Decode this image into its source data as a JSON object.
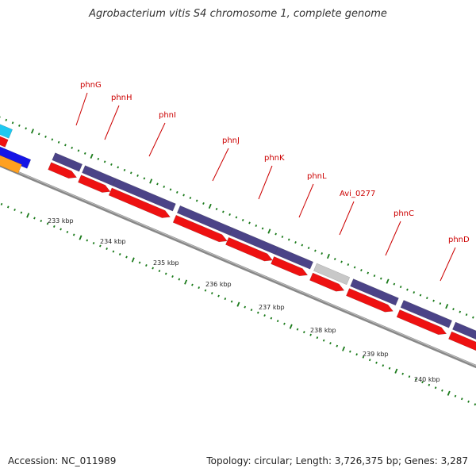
{
  "title": "Agrobacterium vitis S4 chromosome 1, complete genome",
  "footer": {
    "accession": "Accession: NC_011989",
    "topology": "Topology: circular; Length: 3,726,375 bp; Genes: 3,287"
  },
  "colors": {
    "cds": "#4b4387",
    "gene_arrow": "#ee1111",
    "pseudo": "#c8c8c8",
    "backbone": "#888888",
    "tick": "#1a7a1a",
    "label": "#cc0000",
    "left_cyan": "#1ec8f0",
    "left_blue": "#1515e6",
    "left_orange": "#ffa020"
  },
  "ruler": [
    {
      "text": "233 kbp"
    },
    {
      "text": "234 kbp"
    },
    {
      "text": "235 kbp"
    },
    {
      "text": "236 kbp"
    },
    {
      "text": "237 kbp"
    },
    {
      "text": "238 kbp"
    },
    {
      "text": "239 kbp"
    },
    {
      "text": "240 kbp"
    }
  ],
  "genes": [
    {
      "name": "phnG"
    },
    {
      "name": "phnH"
    },
    {
      "name": "phnI"
    },
    {
      "name": "phnJ"
    },
    {
      "name": "phnK"
    },
    {
      "name": "phnL"
    },
    {
      "name": "Avi_0277"
    },
    {
      "name": "phnC"
    },
    {
      "name": "phnD"
    }
  ]
}
